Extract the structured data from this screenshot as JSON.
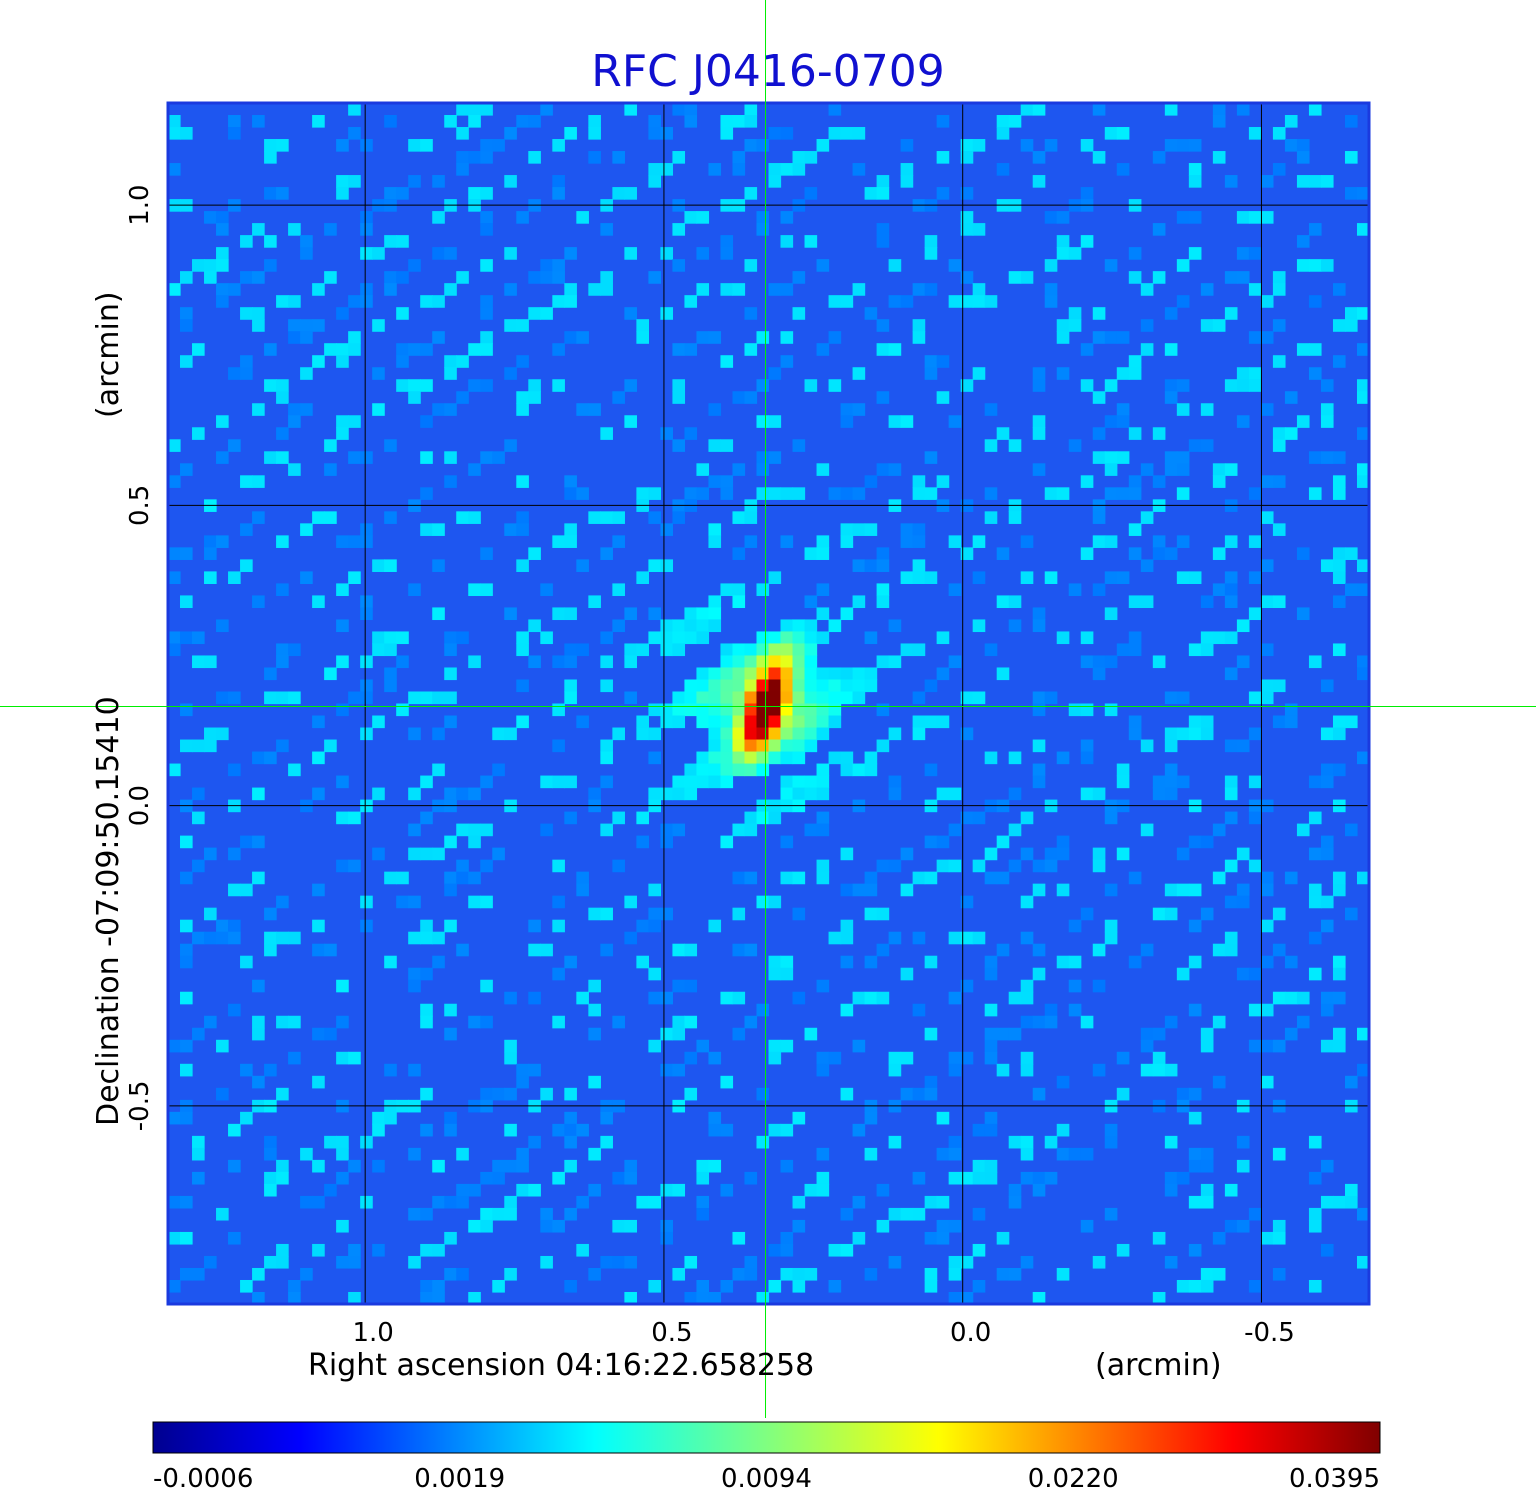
{
  "chart_data": {
    "type": "heatmap",
    "title": "RFC J0416-0709",
    "xlabel": "Right ascension  04:16:22.658258",
    "xunit": "(arcmin)",
    "ylabel": "Declination  -07:09:50.15410",
    "yunit": "(arcmin)",
    "x_ticks": [
      "1.0",
      "0.5",
      "0.0",
      "-0.5"
    ],
    "x_tick_values": [
      1.0,
      0.5,
      0.0,
      -0.5
    ],
    "y_ticks": [
      "1.0",
      "0.5",
      "0.0",
      "-0.5"
    ],
    "y_tick_values": [
      1.0,
      0.5,
      0.0,
      -0.5
    ],
    "xlim": [
      1.33,
      -0.68
    ],
    "ylim": [
      -0.83,
      1.17
    ],
    "grid": true,
    "crosshair": {
      "ra_offset": 0.33,
      "dec_offset": 0.165,
      "color": "#00ee00"
    },
    "source_peak": {
      "ra_offset": 0.33,
      "dec_offset": 0.165,
      "flux": 0.0395
    },
    "colorbar": {
      "colormap": "jet",
      "ticks": [
        "-0.0006",
        "0.0019",
        "0.0094",
        "0.0220",
        "0.0395"
      ],
      "min": -0.0006,
      "max": 0.0395
    }
  }
}
